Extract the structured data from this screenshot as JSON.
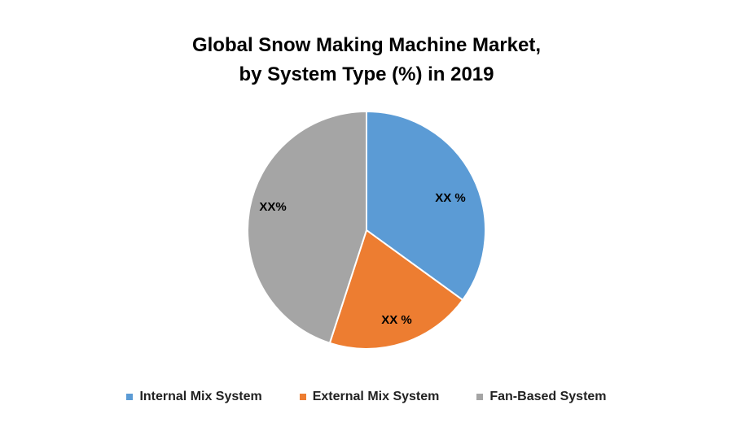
{
  "chart_data": {
    "type": "pie",
    "title_line1": "Global Snow Making Machine Market,",
    "title_line2": "by System Type (%) in 2019",
    "slices": [
      {
        "name": "Internal Mix System",
        "value": 35,
        "label": "XX %",
        "color": "#5B9BD5"
      },
      {
        "name": "External Mix System",
        "value": 20,
        "label": "XX %",
        "color": "#ED7D31"
      },
      {
        "name": "Fan-Based System",
        "value": 45,
        "label": "XX%",
        "color": "#A5A5A5"
      }
    ],
    "legend_position": "bottom"
  }
}
